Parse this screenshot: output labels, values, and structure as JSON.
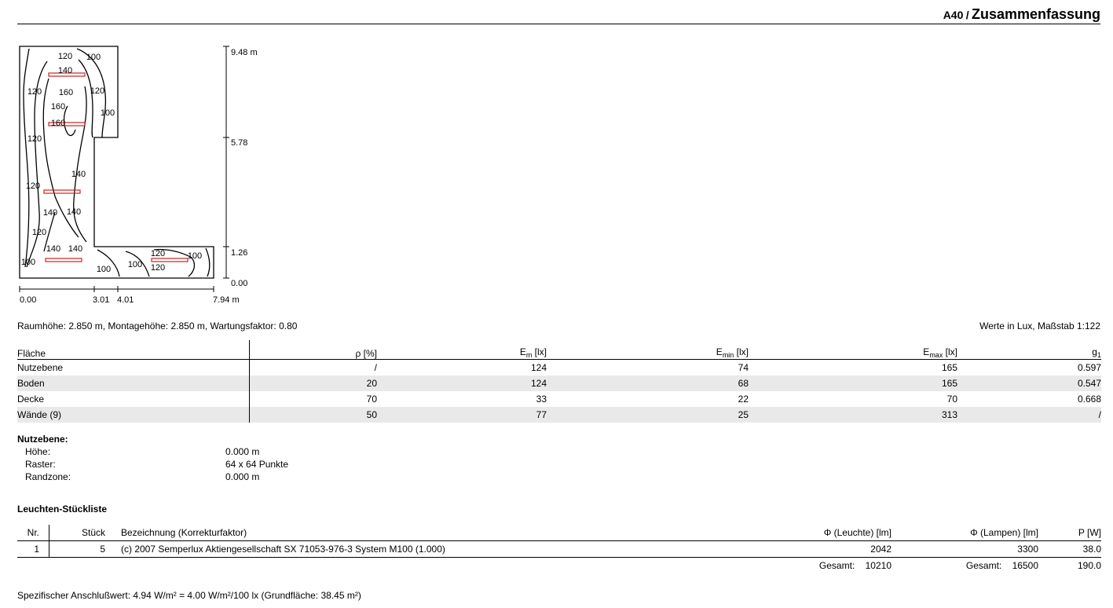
{
  "header": {
    "code": "A40",
    "separator": "/",
    "title": "Zusammenfassung"
  },
  "plan": {
    "x_ticks": [
      "0.00",
      "3.01",
      "4.01",
      "7.94 m"
    ],
    "y_ticks": [
      "9.48 m",
      "5.78",
      "1.26",
      "0.00"
    ],
    "contour_labels": [
      "120",
      "100",
      "140",
      "120",
      "160",
      "120",
      "160",
      "100",
      "160",
      "120",
      "140",
      "120",
      "140",
      "140",
      "120",
      "140",
      "140",
      "100",
      "120",
      "100",
      "100",
      "100",
      "120",
      "100"
    ]
  },
  "info_line": {
    "left": "Raumhöhe: 2.850 m, Montagehöhe: 2.850 m, Wartungsfaktor: 0.80",
    "right": "Werte in Lux, Maßstab 1:122"
  },
  "surfaces": {
    "headers": {
      "flaeche": "Fläche",
      "rho": "ρ [%]",
      "em_main": "E",
      "em_sub": "m",
      "em_unit": " [lx]",
      "emin_main": "E",
      "emin_sub": "min",
      "emin_unit": " [lx]",
      "emax_main": "E",
      "emax_sub": "max",
      "emax_unit": " [lx]",
      "g_main": "g",
      "g_sub": "1"
    },
    "rows": [
      {
        "name": "Nutzebene",
        "rho": "/",
        "em": "124",
        "emin": "74",
        "emax": "165",
        "g1": "0.597"
      },
      {
        "name": "Boden",
        "rho": "20",
        "em": "124",
        "emin": "68",
        "emax": "165",
        "g1": "0.547"
      },
      {
        "name": "Decke",
        "rho": "70",
        "em": "33",
        "emin": "22",
        "emax": "70",
        "g1": "0.668"
      },
      {
        "name": "Wände (9)",
        "rho": "50",
        "em": "77",
        "emin": "25",
        "emax": "313",
        "g1": "/"
      }
    ]
  },
  "nutzebene": {
    "title": "Nutzebene:",
    "rows": [
      {
        "label": "Höhe:",
        "value": "0.000 m"
      },
      {
        "label": "Raster:",
        "value": "64 x 64 Punkte"
      },
      {
        "label": "Randzone:",
        "value": "0.000 m"
      }
    ]
  },
  "luminaires": {
    "title": "Leuchten-Stückliste",
    "headers": {
      "nr": "Nr.",
      "stueck": "Stück",
      "bez": "Bezeichnung (Korrekturfaktor)",
      "phi_leuchte": "Φ (Leuchte) [lm]",
      "phi_lampen": "Φ (Lampen) [lm]",
      "p": "P [W]"
    },
    "rows": [
      {
        "nr": "1",
        "stueck": "5",
        "bez": "(c) 2007 Semperlux Aktiengesellschaft SX 71053-976-3 System M100 (1.000)",
        "phi_leuchte": "2042",
        "phi_lampen": "3300",
        "p": "38.0"
      }
    ],
    "totals": {
      "label1": "Gesamt:",
      "phi_leuchte": "10210",
      "label2": "Gesamt:",
      "phi_lampen": "16500",
      "p": "190.0"
    }
  },
  "footer": "Spezifischer Anschlußwert: 4.94 W/m² = 4.00 W/m²/100 lx (Grundfläche: 38.45 m²)"
}
